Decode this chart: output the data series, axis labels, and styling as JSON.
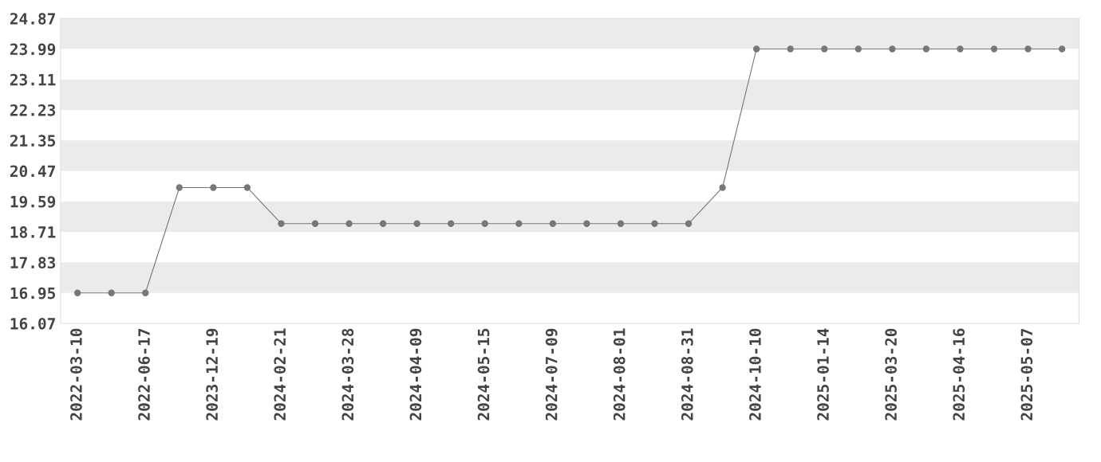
{
  "chart_data": {
    "type": "line",
    "categories": [
      "2022-03-10",
      null,
      "2022-06-17",
      null,
      "2023-12-19",
      null,
      "2024-02-21",
      null,
      "2024-03-28",
      null,
      "2024-04-09",
      null,
      "2024-05-15",
      null,
      "2024-07-09",
      null,
      "2024-08-01",
      null,
      "2024-08-31",
      null,
      "2024-10-10",
      null,
      "2025-01-14",
      null,
      "2025-03-20",
      null,
      "2025-04-16",
      null,
      "2025-05-07",
      null
    ],
    "series": [
      {
        "color": "#777777",
        "values": [
          16.95,
          16.95,
          16.95,
          19.99,
          19.99,
          19.99,
          18.95,
          18.95,
          18.95,
          18.95,
          18.95,
          18.95,
          18.95,
          18.95,
          18.95,
          18.95,
          18.95,
          18.95,
          18.95,
          19.99,
          23.99,
          23.99,
          23.99,
          23.99,
          23.99,
          23.99,
          23.99,
          23.99,
          23.99,
          23.99
        ]
      }
    ],
    "ylim": [
      16.07,
      24.87
    ],
    "yticks": [
      16.07,
      16.95,
      17.83,
      18.71,
      19.59,
      20.47,
      21.35,
      22.23,
      23.11,
      23.99,
      24.87
    ],
    "bands": [
      {
        "axis": "y",
        "from": 16.95,
        "to": 17.83,
        "color": "#ebebeb"
      },
      {
        "axis": "y",
        "from": 18.71,
        "to": 19.59,
        "color": "#ebebeb"
      },
      {
        "axis": "y",
        "from": 20.47,
        "to": 21.35,
        "color": "#ebebeb"
      },
      {
        "axis": "y",
        "from": 22.23,
        "to": 23.11,
        "color": "#ebebeb"
      },
      {
        "axis": "y",
        "from": 23.99,
        "to": 24.87,
        "color": "#ebebeb"
      }
    ],
    "marker": "circle",
    "line_style": "solid",
    "grid": false,
    "legend": false
  }
}
